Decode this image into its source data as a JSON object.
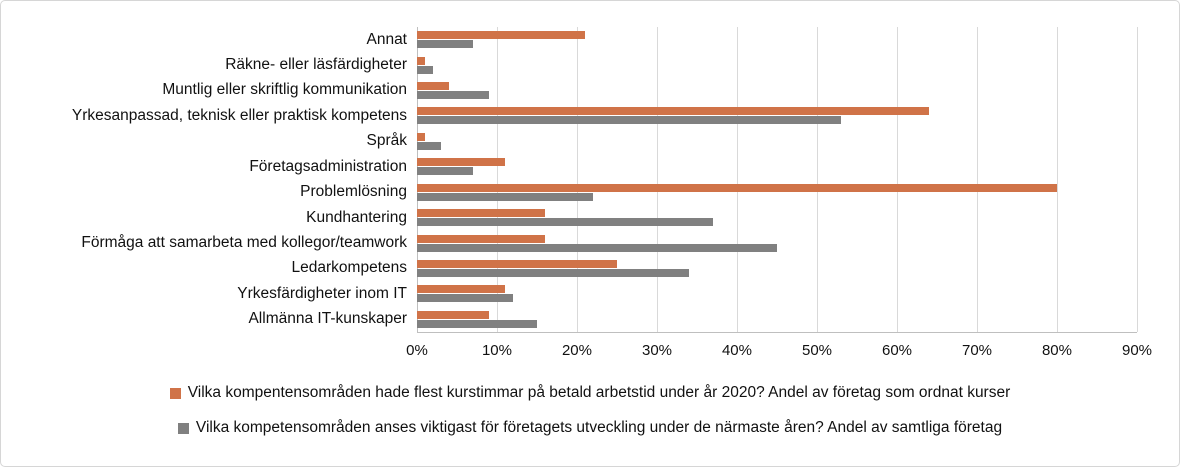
{
  "chart_data": {
    "type": "bar",
    "orientation": "horizontal",
    "title": "",
    "categories": [
      "Annat",
      "Räkne- eller läsfärdigheter",
      "Muntlig eller skriftlig kommunikation",
      "Yrkesanpassad, teknisk eller praktisk kompetens",
      "Språk",
      "Företagsadministration",
      "Problemlösning",
      "Kundhantering",
      "Förmåga att samarbeta med kollegor/teamwork",
      "Ledarkompetens",
      "Yrkesfärdigheter inom IT",
      "Allmänna IT-kunskaper"
    ],
    "series": [
      {
        "name": "Vilka kompentensområden hade flest kurstimmar på betald arbetstid under år 2020? Andel av företag som ordnat kurser",
        "color": "#d07348",
        "values": [
          21,
          1,
          4,
          64,
          1,
          11,
          80,
          16,
          16,
          25,
          11,
          9
        ]
      },
      {
        "name": "Vilka kompetensområden anses viktigast för företagets utveckling under de närmaste åren? Andel av samtliga företag",
        "color": "#808080",
        "values": [
          7,
          2,
          9,
          53,
          3,
          7,
          22,
          37,
          45,
          34,
          12,
          15
        ]
      }
    ],
    "x_axis": {
      "min": 0,
      "max": 90,
      "tick_step": 10,
      "ticks": [
        "0%",
        "10%",
        "20%",
        "30%",
        "40%",
        "50%",
        "60%",
        "70%",
        "80%",
        "90%"
      ]
    },
    "grid": true,
    "legend_position": "bottom",
    "value_unit": "%"
  }
}
